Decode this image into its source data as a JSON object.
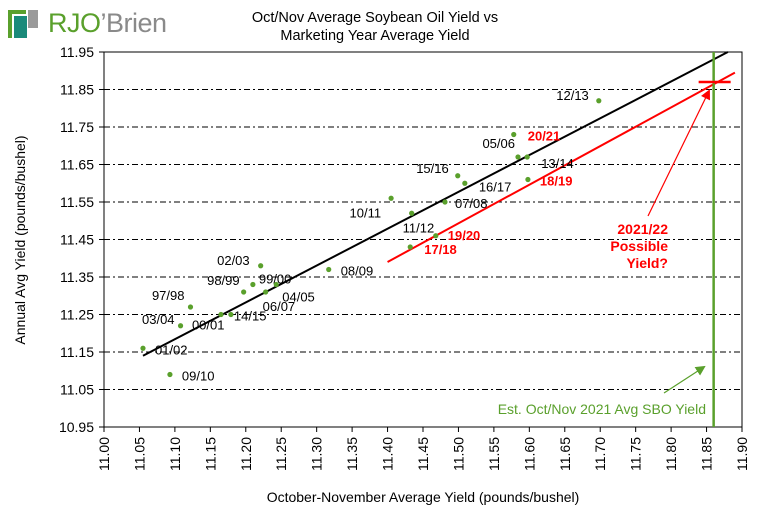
{
  "logo": {
    "part1": "RJO",
    "part2": "’Brien"
  },
  "chart_data": {
    "type": "scatter",
    "title": "Oct/Nov Average Soybean Oil Yield vs Marketing Year Average Yield",
    "title_lines": [
      "Oct/Nov Average Soybean Oil Yield vs",
      "Marketing Year Average Yield"
    ],
    "xlabel": "October-November Average Yield (pounds/bushel)",
    "ylabel": "Annual Avg Yield (pounds/bushel)",
    "xlim": [
      11.0,
      11.9
    ],
    "ylim": [
      10.95,
      11.95
    ],
    "xticks": [
      "11.00",
      "11.05",
      "11.10",
      "11.15",
      "11.20",
      "11.25",
      "11.30",
      "11.35",
      "11.40",
      "11.45",
      "11.50",
      "11.55",
      "11.60",
      "11.65",
      "11.70",
      "11.75",
      "11.80",
      "11.85",
      "11.90"
    ],
    "yticks": [
      "11.95",
      "11.85",
      "11.75",
      "11.65",
      "11.55",
      "11.45",
      "11.35",
      "11.25",
      "11.15",
      "11.05",
      "10.95"
    ],
    "grid": "horizontal dashed",
    "point_color": "#5aa02c",
    "points": [
      {
        "label": "01/02",
        "x": 11.055,
        "y": 11.16,
        "color": "#000000"
      },
      {
        "label": "09/10",
        "x": 11.093,
        "y": 11.09,
        "color": "#000000"
      },
      {
        "label": "03/04",
        "x": 11.108,
        "y": 11.22,
        "color": "#000000"
      },
      {
        "label": "97/98",
        "x": 11.122,
        "y": 11.27,
        "color": "#000000"
      },
      {
        "label": "00/01",
        "x": 11.165,
        "y": 11.25,
        "color": "#000000"
      },
      {
        "label": "14/15",
        "x": 11.179,
        "y": 11.25,
        "color": "#000000"
      },
      {
        "label": "98/99",
        "x": 11.197,
        "y": 11.31,
        "color": "#000000"
      },
      {
        "label": "99/00",
        "x": 11.21,
        "y": 11.33,
        "color": "#000000"
      },
      {
        "label": "02/03",
        "x": 11.221,
        "y": 11.38,
        "color": "#000000"
      },
      {
        "label": "06/07",
        "x": 11.228,
        "y": 11.31,
        "color": "#000000"
      },
      {
        "label": "04/05",
        "x": 11.243,
        "y": 11.33,
        "color": "#000000"
      },
      {
        "label": "08/09",
        "x": 11.317,
        "y": 11.37,
        "color": "#000000"
      },
      {
        "label": "10/11",
        "x": 11.405,
        "y": 11.56,
        "color": "#000000"
      },
      {
        "label": "11/12",
        "x": 11.434,
        "y": 11.52,
        "color": "#000000"
      },
      {
        "label": "17/18",
        "x": 11.432,
        "y": 11.43,
        "color": "#ff0000"
      },
      {
        "label": "19/20",
        "x": 11.468,
        "y": 11.46,
        "color": "#ff0000"
      },
      {
        "label": "07/08",
        "x": 11.481,
        "y": 11.55,
        "color": "#000000"
      },
      {
        "label": "15/16",
        "x": 11.499,
        "y": 11.62,
        "color": "#000000"
      },
      {
        "label": "16/17",
        "x": 11.509,
        "y": 11.6,
        "color": "#000000"
      },
      {
        "label": "05/06",
        "x": 11.584,
        "y": 11.67,
        "color": "#000000"
      },
      {
        "label": "13/14",
        "x": 11.597,
        "y": 11.67,
        "color": "#000000"
      },
      {
        "label": "20/21",
        "x": 11.578,
        "y": 11.73,
        "color": "#ff0000"
      },
      {
        "label": "18/19",
        "x": 11.598,
        "y": 11.61,
        "color": "#ff0000"
      },
      {
        "label": "12/13",
        "x": 11.698,
        "y": 11.82,
        "color": "#000000"
      }
    ],
    "trendlines": [
      {
        "name": "all-years-trend",
        "color": "#000000",
        "from": [
          11.055,
          11.14
        ],
        "to": [
          11.88,
          11.95
        ]
      },
      {
        "name": "recent-years-trend",
        "color": "#ff0000",
        "from": [
          11.4,
          11.39
        ],
        "to": [
          11.89,
          11.895
        ]
      }
    ],
    "vertical_line": {
      "x": 11.86,
      "color": "#5aa02c",
      "label": "Est. Oct/Nov 2021 Avg  SBO Yield"
    },
    "projection_marker": {
      "x": 11.86,
      "y": 11.87,
      "color": "#ff0000"
    },
    "annotations": [
      {
        "text_lines": [
          "2021/22",
          "Possible",
          "Yield?"
        ],
        "color": "#ff0000"
      },
      {
        "text_lines": [
          "Est. Oct/Nov 2021 Avg  SBO Yield"
        ],
        "color": "#5aa02c"
      }
    ]
  }
}
